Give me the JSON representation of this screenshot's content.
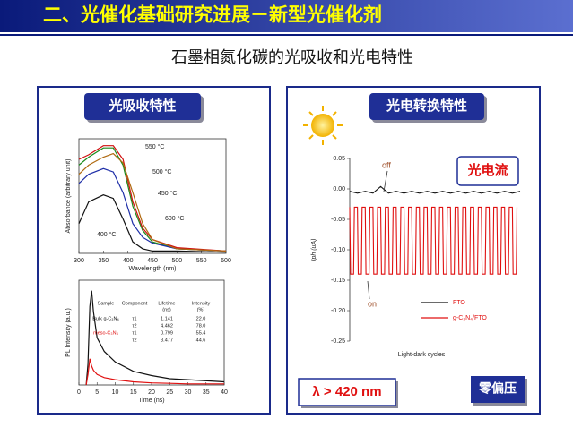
{
  "header": {
    "title": "二、光催化基础研究进展－新型光催化剂",
    "subtitle": "石墨相氮化碳的光吸收和光电特性"
  },
  "left_panel": {
    "label": "光吸收特性"
  },
  "right_panel": {
    "label": "光电转换特性",
    "tag": "光电流",
    "wavelength": "λ > 420 nm",
    "bias": "零偏压"
  },
  "chart_data": [
    {
      "type": "line",
      "xlabel": "Wavelength (nm)",
      "ylabel": "Absorbance (arbitrary unit)",
      "x": [
        300,
        320,
        350,
        370,
        390,
        410,
        430,
        450,
        500,
        600
      ],
      "xlim": [
        300,
        600
      ],
      "xticks": [
        300,
        350,
        400,
        450,
        500,
        550,
        600
      ],
      "ylim": [
        0,
        1
      ],
      "series": [
        {
          "name": "550 °C",
          "color": "#1a8a1a",
          "values": [
            0.77,
            0.84,
            0.92,
            0.92,
            0.77,
            0.41,
            0.2,
            0.1,
            0.04,
            0.02
          ]
        },
        {
          "name": "500 °C",
          "color": "#1f2fa8",
          "values": [
            0.61,
            0.69,
            0.74,
            0.71,
            0.53,
            0.26,
            0.14,
            0.09,
            0.04,
            0.02
          ]
        },
        {
          "name": "450 °C",
          "color": "#d01010",
          "values": [
            0.82,
            0.86,
            0.94,
            0.94,
            0.82,
            0.45,
            0.22,
            0.12,
            0.05,
            0.02
          ]
        },
        {
          "name": "600 °C",
          "color": "#b06a10",
          "values": [
            0.69,
            0.77,
            0.84,
            0.87,
            0.79,
            0.53,
            0.26,
            0.12,
            0.04,
            0.02
          ]
        },
        {
          "name": "400 °C",
          "color": "#111111",
          "values": [
            0.26,
            0.45,
            0.51,
            0.48,
            0.3,
            0.1,
            0.04,
            0.02,
            0.02,
            0.01
          ]
        }
      ]
    },
    {
      "type": "line",
      "xlabel": "Time (ns)",
      "ylabel": "PL Intensity (a.u.)",
      "x": [
        2,
        2.5,
        3,
        3.5,
        4,
        5,
        7,
        10,
        15,
        20,
        25,
        30,
        40
      ],
      "xlim": [
        0,
        40
      ],
      "xticks": [
        0,
        5,
        10,
        15,
        20,
        25,
        30,
        35,
        40
      ],
      "ylim": [
        0,
        1
      ],
      "table_header": [
        "Sample",
        "Component",
        "Lifetime",
        "Intensity"
      ],
      "table_units": [
        "(ns)",
        "(%)"
      ],
      "series": [
        {
          "name": "Bulk g-C₃N₄",
          "color": "#111111",
          "values": [
            0,
            0.2,
            0.75,
            0.9,
            0.7,
            0.45,
            0.32,
            0.22,
            0.13,
            0.09,
            0.06,
            0.05,
            0.03
          ],
          "components": [
            {
              "name": "τ1",
              "lifetime": "1.141",
              "intensity": "22.0"
            },
            {
              "name": "τ2",
              "lifetime": "4.462",
              "intensity": "78.0"
            }
          ]
        },
        {
          "name": "meso-C₃N₄",
          "color": "#e01010",
          "values": [
            0,
            0.1,
            0.25,
            0.18,
            0.14,
            0.1,
            0.07,
            0.05,
            0.03,
            0.02,
            0.015,
            0.01,
            0.01
          ],
          "components": [
            {
              "name": "τ1",
              "lifetime": "0.799",
              "intensity": "55.4"
            },
            {
              "name": "τ2",
              "lifetime": "3.477",
              "intensity": "44.6"
            }
          ]
        }
      ]
    },
    {
      "type": "line",
      "xlabel": "Light-dark cycles",
      "ylabel": "Iph (uA)",
      "xlim": [
        0,
        44
      ],
      "ylim": [
        -0.25,
        0.05
      ],
      "yticks": [
        {
          "value": 0.05,
          "label": "0.05"
        },
        {
          "value": 0,
          "label": "0.00"
        },
        {
          "value": -0.05,
          "label": "-0.05"
        },
        {
          "value": -0.1,
          "label": "-0.10"
        },
        {
          "value": -0.15,
          "label": "-0.15"
        },
        {
          "value": -0.2,
          "label": "-0.20"
        },
        {
          "value": -0.25,
          "label": "-0.25"
        }
      ],
      "annotations": [
        "off",
        "on"
      ],
      "series": [
        {
          "name": "FTO",
          "color": "#111111",
          "x": [
            0,
            2,
            4,
            6,
            8,
            10,
            12,
            14,
            16,
            18,
            20,
            22,
            24,
            26,
            28,
            30,
            32,
            34,
            36,
            38,
            40,
            42,
            44
          ],
          "values": [
            -0.004,
            -0.007,
            -0.004,
            -0.007,
            0.004,
            -0.007,
            -0.004,
            -0.007,
            -0.004,
            -0.007,
            -0.004,
            -0.007,
            -0.004,
            -0.007,
            -0.004,
            -0.007,
            -0.004,
            -0.007,
            -0.004,
            -0.007,
            -0.004,
            -0.007,
            -0.004
          ]
        },
        {
          "name": "g-C₃N₄/FTO",
          "color": "#e01010",
          "x": [
            0,
            0.2,
            1,
            1.2,
            2,
            2.2,
            3,
            3.2,
            4,
            4.2,
            5,
            5.2,
            6,
            6.2,
            7,
            7.2,
            8,
            8.2,
            9,
            9.2,
            10,
            10.2,
            11,
            11.2,
            12,
            12.2,
            13,
            13.2,
            14,
            14.2,
            15,
            15.2,
            16,
            16.2,
            17,
            17.2,
            18,
            18.2,
            19,
            19.2,
            20,
            20.2,
            21,
            21.2,
            22,
            22.2,
            23,
            23.2,
            24,
            24.2,
            25,
            25.2,
            26,
            26.2,
            27,
            27.2,
            28,
            28.2,
            29,
            29.2,
            30,
            30.2,
            31,
            31.2,
            32,
            32.2,
            33,
            33.2,
            34,
            34.2,
            35,
            35.2,
            36,
            36.2,
            37,
            37.2,
            38,
            38.2,
            39,
            39.2,
            40,
            40.2,
            41,
            41.2,
            42,
            42.2,
            43,
            43.2
          ],
          "values": [
            -0.03,
            -0.14,
            -0.14,
            -0.03,
            -0.03,
            -0.14,
            -0.14,
            -0.03,
            -0.03,
            -0.14,
            -0.14,
            -0.03,
            -0.03,
            -0.14,
            -0.14,
            -0.03,
            -0.03,
            -0.14,
            -0.14,
            -0.03,
            -0.03,
            -0.14,
            -0.14,
            -0.03,
            -0.03,
            -0.14,
            -0.14,
            -0.03,
            -0.03,
            -0.14,
            -0.14,
            -0.03,
            -0.03,
            -0.14,
            -0.14,
            -0.03,
            -0.03,
            -0.14,
            -0.14,
            -0.03,
            -0.03,
            -0.14,
            -0.14,
            -0.03,
            -0.03,
            -0.14,
            -0.14,
            -0.03,
            -0.03,
            -0.14,
            -0.14,
            -0.03,
            -0.03,
            -0.14,
            -0.14,
            -0.03,
            -0.03,
            -0.14,
            -0.14,
            -0.03,
            -0.03,
            -0.14,
            -0.14,
            -0.03,
            -0.03,
            -0.14,
            -0.14,
            -0.03,
            -0.03,
            -0.14,
            -0.14,
            -0.03,
            -0.03,
            -0.14,
            -0.14,
            -0.03,
            -0.03,
            -0.14,
            -0.14,
            -0.03,
            -0.03,
            -0.14,
            -0.14,
            -0.03,
            -0.03,
            -0.14,
            -0.14,
            -0.03
          ]
        }
      ]
    }
  ]
}
